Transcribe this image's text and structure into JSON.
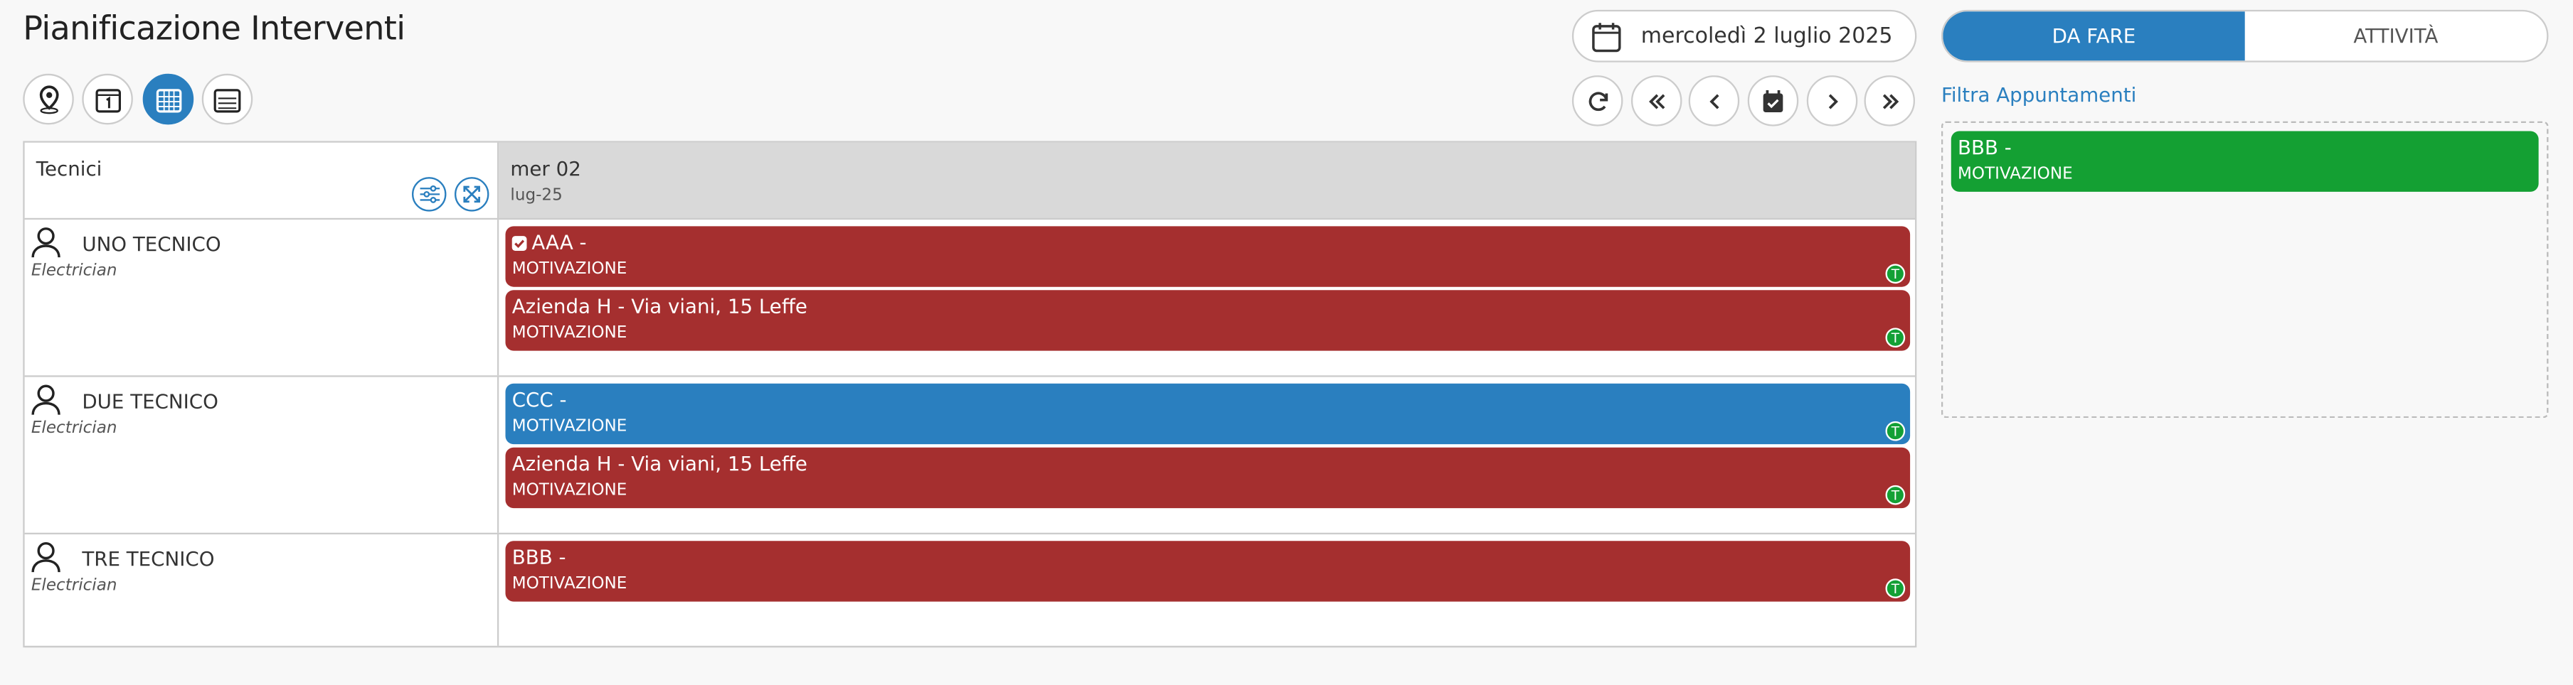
{
  "header": {
    "title": "Pianificazione Interventi"
  },
  "toolbar": {
    "date": "mercoledì 2 luglio 2025"
  },
  "tabs": [
    "DA FARE",
    "ATTIVITÀ"
  ],
  "filter_link": "Filtra Appuntamenti",
  "unassigned": [
    {
      "title": "BBB -",
      "subtitle": "MOTIVAZIONE",
      "color": "#14a033"
    }
  ],
  "schedule": {
    "column_header": "Tecnici",
    "day": "mer 02",
    "month": "lug-25",
    "technicians": [
      {
        "name": "UNO TECNICO",
        "role": "Electrician",
        "events": [
          {
            "title": "AAA -",
            "subtitle": "MOTIVAZIONE",
            "color": "#a52f2f",
            "checked": true,
            "badge": "T"
          },
          {
            "title": "Azienda H - Via viani, 15 Leffe",
            "subtitle": "MOTIVAZIONE",
            "color": "#a52f2f",
            "checked": false,
            "badge": "T"
          }
        ]
      },
      {
        "name": "DUE TECNICO",
        "role": "Electrician",
        "events": [
          {
            "title": "CCC -",
            "subtitle": "MOTIVAZIONE",
            "color": "#2a7fbf",
            "checked": false,
            "badge": "T"
          },
          {
            "title": "Azienda H - Via viani, 15 Leffe",
            "subtitle": "MOTIVAZIONE",
            "color": "#a52f2f",
            "checked": false,
            "badge": "T"
          }
        ]
      },
      {
        "name": "TRE TECNICO",
        "role": "Electrician",
        "events": [
          {
            "title": "BBB -",
            "subtitle": "MOTIVAZIONE",
            "color": "#a52f2f",
            "checked": false,
            "badge": "T"
          }
        ]
      }
    ]
  }
}
